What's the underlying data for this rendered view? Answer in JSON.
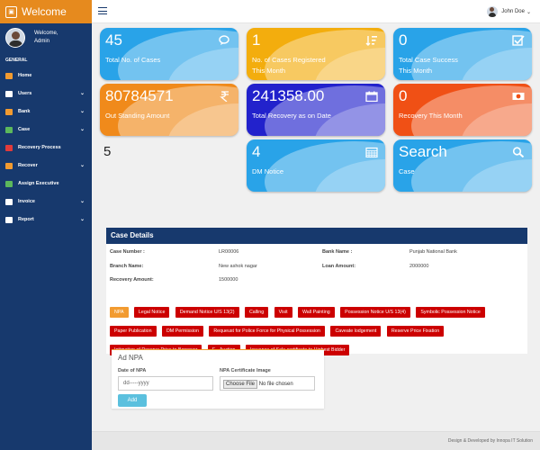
{
  "brand": {
    "title": "Welcome"
  },
  "sidebar": {
    "welcome": "Welcome,",
    "user": "Admin",
    "section": "GENERAL",
    "items": [
      {
        "label": "Home",
        "color": "#f29b30"
      },
      {
        "label": "Users",
        "color": "#ffffff"
      },
      {
        "label": "Bank",
        "color": "#f29b30"
      },
      {
        "label": "Case",
        "color": "#5cb85c"
      },
      {
        "label": "Recovery Process",
        "color": "#e23b3b"
      },
      {
        "label": "Recover",
        "color": "#f29b30"
      },
      {
        "label": "Assign Executive",
        "color": "#5cb85c"
      },
      {
        "label": "Invoice",
        "color": "#ffffff"
      },
      {
        "label": "Report",
        "color": "#ffffff"
      }
    ]
  },
  "topbar": {
    "user": "John Doe",
    "caret": "⌄"
  },
  "tiles": [
    {
      "value": "45",
      "label": "Total No. of Cases",
      "label2": "",
      "icon": "chat-icon",
      "color": "#29a3e8"
    },
    {
      "value": "1",
      "label": "No. of Cases Registered",
      "label2": "This Month",
      "icon": "sort-icon",
      "color": "#f3ad0d"
    },
    {
      "value": "0",
      "label": "Total Case Success",
      "label2": "This Month",
      "icon": "checkbox-icon",
      "color": "#29a3e8"
    },
    {
      "value": "80784571",
      "label": "Out Standing Amount",
      "label2": "",
      "icon": "rupee-icon",
      "color": "#f08a1b"
    },
    {
      "value": "241358.00",
      "label": "Total Recovery as on Date",
      "label2": "",
      "icon": "calendar-icon",
      "color": "#2222cc"
    },
    {
      "value": "0",
      "label": "Recovery This Month",
      "label2": "",
      "icon": "money-icon",
      "color": "#f05015"
    },
    {
      "value": "4",
      "label": "DM Notice",
      "label2": "",
      "icon": "grid-calendar-icon",
      "color": "#29a3e8"
    },
    {
      "value": "Search",
      "label": "Case",
      "label2": "",
      "icon": "search-icon",
      "color": "#29a3e8"
    }
  ],
  "plain_count": "5",
  "case": {
    "heading": "Case Details",
    "case_number_k": "Case Number :",
    "case_number_v": "LR00006",
    "bank_k": "Bank Name :",
    "bank_v": "Punjab National Bank",
    "branch_k": "Branch Name:",
    "branch_v": "New ashok nagar",
    "loan_k": "Loan Amount:",
    "loan_v": "2000000",
    "recovery_k": "Recovery Amount:",
    "recovery_v": "1500000"
  },
  "steps": [
    "NPA",
    "Legal Notice",
    "Demand Notice U/S 13(2)",
    "Calling",
    "Visit",
    "Wall Painting",
    "Possession Notice U/S 13(4)",
    "Symbolic Possession Notice",
    "Paper Publication",
    "DM Permission",
    "Requeust for Police Force for Physical Possession",
    "Caveate lodgement",
    "Reserve Price Fixation",
    "Intimation of Reserve Price to Borrower",
    "E - Auction",
    "Issuance of Sale certificate to Highest Bidder"
  ],
  "npa_form": {
    "title": "Ad NPA",
    "date_label": "Date of NPA",
    "date_placeholder": "dd-----yyyy",
    "image_label": "NPA Certificate Image",
    "choose_file": "Choose File",
    "no_file": "No file chosen",
    "add": "Add"
  },
  "footer": {
    "text": "Design & Developed by Innopa IT Solution"
  }
}
